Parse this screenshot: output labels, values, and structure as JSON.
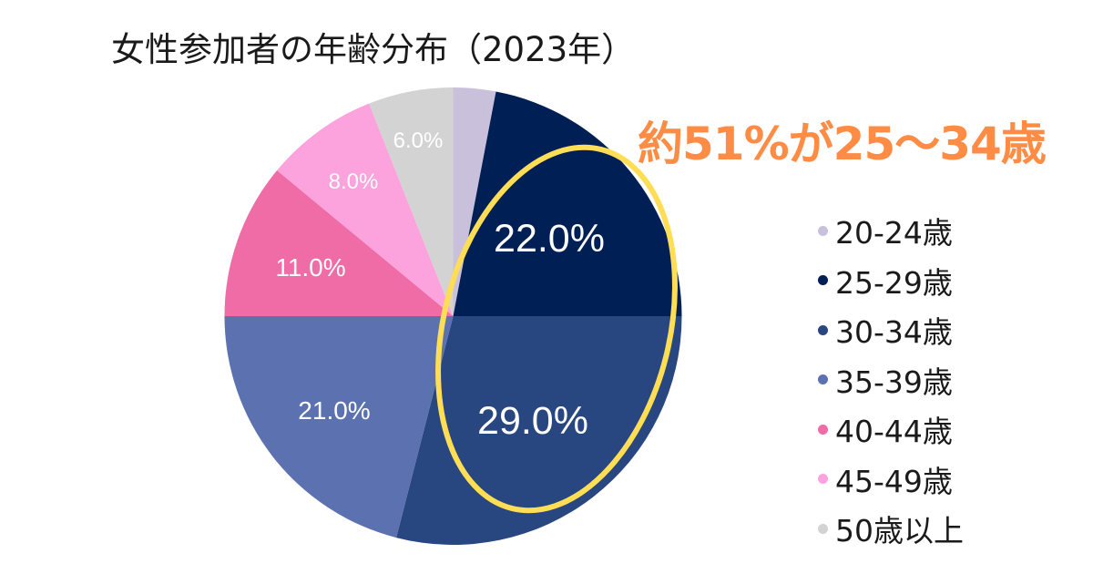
{
  "chart_data": {
    "type": "pie",
    "title": "女性参加者の年齢分布（2023年）",
    "annotation": "約51%が25～34歳",
    "categories": [
      "20-24歳",
      "25-29歳",
      "30-34歳",
      "35-39歳",
      "40-44歳",
      "45-49歳",
      "50歳以上"
    ],
    "values": [
      3.0,
      22.0,
      29.0,
      21.0,
      11.0,
      8.0,
      6.0
    ],
    "unit": "%",
    "data_labels": [
      "",
      "22.0%",
      "29.0%",
      "21.0%",
      "11.0%",
      "8.0%",
      "6.0%"
    ],
    "colors": [
      "#c9c0db",
      "#001f55",
      "#284680",
      "#5c72b0",
      "#ef6ca6",
      "#fca3dd",
      "#d3d3d3"
    ],
    "start_angle_deg": 0,
    "direction": "clockwise",
    "legend_position": "right",
    "highlight": {
      "shape": "ellipse",
      "color": "#ffdd55",
      "covers": [
        "25-29歳",
        "30-34歳"
      ]
    }
  },
  "title": "女性参加者の年齢分布（2023年）",
  "annotation": {
    "text": "約51%が25～34歳",
    "color": "#ff8c45"
  },
  "labels": {
    "l1": "22.0%",
    "l2": "29.0%",
    "l3": "21.0%",
    "l4": "11.0%",
    "l5": "8.0%",
    "l6": "6.0%"
  },
  "legend": {
    "items": [
      {
        "label": "20-24歳",
        "color": "#c9c0db"
      },
      {
        "label": "25-29歳",
        "color": "#001f55"
      },
      {
        "label": "30-34歳",
        "color": "#284680"
      },
      {
        "label": "35-39歳",
        "color": "#5c72b0"
      },
      {
        "label": "40-44歳",
        "color": "#ef6ca6"
      },
      {
        "label": "45-49歳",
        "color": "#fca3dd"
      },
      {
        "label": "50歳以上",
        "color": "#d3d3d3"
      }
    ]
  }
}
